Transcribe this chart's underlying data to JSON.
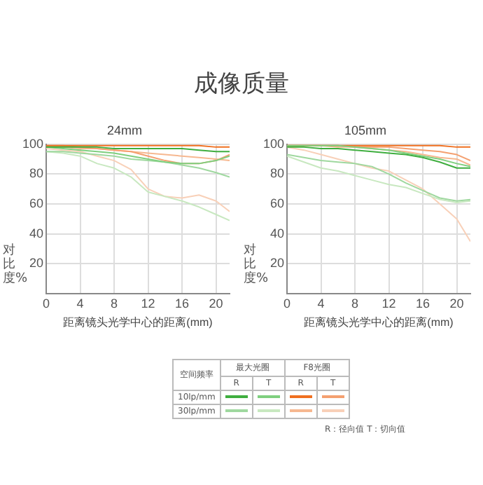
{
  "chart_data": [
    {
      "type": "other",
      "title": "成像质量"
    },
    {
      "type": "line",
      "title": "24mm",
      "xlabel": "距离镜头光学中心的距离(mm)",
      "ylabel": "对比度%",
      "x": [
        0,
        2,
        4,
        6,
        8,
        10,
        12,
        14,
        16,
        18,
        20,
        21.6
      ],
      "xlim": [
        0,
        21.6
      ],
      "xticks": [
        0,
        4,
        8,
        12,
        16,
        20
      ],
      "ylim": [
        0,
        100
      ],
      "yticks": [
        20,
        40,
        60,
        80,
        100
      ],
      "grid": true,
      "legend": false,
      "marker": "none",
      "series": [
        {
          "color": "#3fae3f",
          "values": [
            98,
            98,
            98,
            98,
            97,
            97,
            97,
            97,
            97,
            96,
            95,
            95
          ]
        },
        {
          "color": "#7fcf7f",
          "values": [
            98,
            97,
            96,
            95,
            94,
            92,
            90,
            88,
            87,
            87,
            89,
            92
          ]
        },
        {
          "color": "#9fd89f",
          "values": [
            95,
            95,
            94,
            93,
            92,
            90,
            89,
            88,
            86,
            84,
            81,
            78
          ]
        },
        {
          "color": "#c8e8c0",
          "values": [
            95,
            94,
            92,
            87,
            84,
            78,
            68,
            65,
            62,
            58,
            53,
            49
          ]
        },
        {
          "color": "#f07020",
          "values": [
            99,
            99,
            99,
            99,
            99,
            99,
            99,
            99,
            99,
            99,
            98,
            98
          ]
        },
        {
          "color": "#f4a070",
          "values": [
            99,
            99,
            98,
            97,
            96,
            95,
            92,
            89,
            87,
            87,
            89,
            93
          ]
        },
        {
          "color": "#f6b890",
          "values": [
            98,
            98,
            97,
            97,
            96,
            95,
            94,
            93,
            92,
            91,
            90,
            89
          ]
        },
        {
          "color": "#f8d0b8",
          "values": [
            97,
            96,
            95,
            92,
            89,
            83,
            70,
            65,
            64,
            66,
            62,
            55
          ]
        }
      ]
    },
    {
      "type": "line",
      "title": "105mm",
      "xlabel": "距离镜头光学中心的距离(mm)",
      "ylabel": "对比度%",
      "x": [
        0,
        2,
        4,
        6,
        8,
        10,
        12,
        14,
        16,
        18,
        20,
        21.6
      ],
      "xlim": [
        0,
        21.6
      ],
      "xticks": [
        0,
        4,
        8,
        12,
        16,
        20
      ],
      "ylim": [
        0,
        100
      ],
      "yticks": [
        20,
        40,
        60,
        80,
        100
      ],
      "grid": true,
      "legend": false,
      "marker": "none",
      "series": [
        {
          "color": "#3fae3f",
          "values": [
            98,
            98,
            97,
            97,
            96,
            95,
            94,
            93,
            91,
            88,
            84,
            84
          ]
        },
        {
          "color": "#7fcf7f",
          "values": [
            99,
            99,
            99,
            99,
            98,
            97,
            96,
            94,
            92,
            90,
            87,
            85
          ]
        },
        {
          "color": "#9fd89f",
          "values": [
            93,
            91,
            89,
            88,
            87,
            85,
            80,
            74,
            69,
            64,
            62,
            63
          ]
        },
        {
          "color": "#c8e8c0",
          "values": [
            92,
            88,
            84,
            82,
            79,
            76,
            73,
            71,
            67,
            63,
            61,
            62
          ]
        },
        {
          "color": "#f07020",
          "values": [
            99,
            99,
            99,
            99,
            99,
            99,
            99,
            99,
            99,
            99,
            98,
            98
          ]
        },
        {
          "color": "#f4a070",
          "values": [
            99,
            99,
            99,
            99,
            98,
            98,
            98,
            97,
            96,
            95,
            93,
            89
          ]
        },
        {
          "color": "#f6b890",
          "values": [
            99,
            99,
            99,
            98,
            98,
            97,
            96,
            95,
            93,
            91,
            90,
            86
          ]
        },
        {
          "color": "#f8d0b8",
          "values": [
            98,
            96,
            93,
            90,
            87,
            84,
            82,
            76,
            70,
            60,
            50,
            35
          ]
        }
      ]
    },
    {
      "type": "other",
      "annotations": [
        "空间频率",
        "最大光圈",
        "F8光圈",
        "R",
        "T",
        "R",
        "T",
        "10lp/mm",
        "30lp/mm",
        "R：径向值  T：切向值"
      ]
    }
  ]
}
